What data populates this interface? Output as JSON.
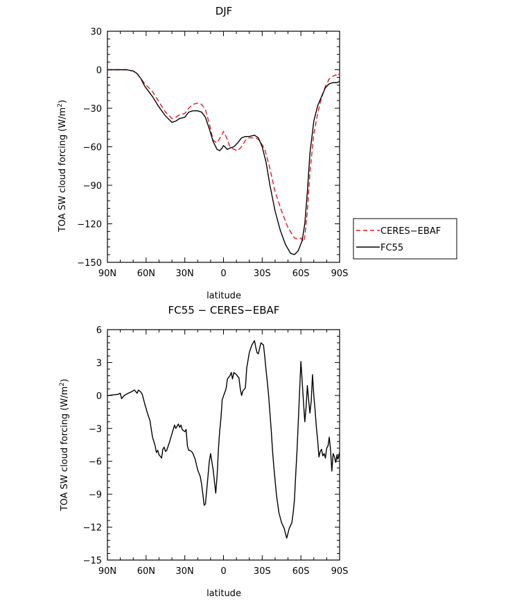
{
  "chart_data": [
    {
      "type": "line",
      "title": "DJF",
      "xlabel": "latitude",
      "ylabel_text": "TOA SW cloud forcing (W/m",
      "ylabel_sup": "2",
      "ylabel_close": ")",
      "xlim": [
        90,
        -90
      ],
      "ylim": [
        -150,
        30
      ],
      "xticks": [
        {
          "value": 90,
          "label": "90N"
        },
        {
          "value": 60,
          "label": "60N"
        },
        {
          "value": 30,
          "label": "30N"
        },
        {
          "value": 0,
          "label": "0"
        },
        {
          "value": -30,
          "label": "30S"
        },
        {
          "value": -60,
          "label": "60S"
        },
        {
          "value": -90,
          "label": "90S"
        }
      ],
      "yticks": [
        {
          "value": 30,
          "label": "30"
        },
        {
          "value": 0,
          "label": "0"
        },
        {
          "value": -30,
          "label": "−30"
        },
        {
          "value": -60,
          "label": "−60"
        },
        {
          "value": -90,
          "label": "−90"
        },
        {
          "value": -120,
          "label": "−120"
        },
        {
          "value": -150,
          "label": "−150"
        }
      ],
      "legend": "right",
      "series": [
        {
          "name": "CERES−EBAF",
          "color": "#e8141b",
          "dash": "dashed",
          "x": [
            90,
            82,
            75,
            70,
            67,
            64,
            61,
            58,
            55,
            50,
            45,
            40,
            37,
            34,
            30,
            27,
            24,
            20,
            17,
            14,
            11,
            8,
            5,
            2,
            0,
            -2,
            -5,
            -8,
            -11,
            -14,
            -17,
            -20,
            -25,
            -28,
            -32,
            -36,
            -40,
            -45,
            -50,
            -55,
            -58,
            -60,
            -62,
            -63,
            -65,
            -67,
            -70,
            -73,
            -76,
            -79,
            -82,
            -85,
            -87,
            -88,
            -90
          ],
          "y": [
            0,
            0,
            0,
            -1,
            -3,
            -7,
            -11,
            -14,
            -17,
            -25,
            -33,
            -38,
            -37,
            -35,
            -34,
            -30,
            -27,
            -26,
            -27,
            -31,
            -42,
            -55,
            -57,
            -52,
            -48,
            -52,
            -60,
            -62,
            -63,
            -60,
            -55,
            -53,
            -53,
            -55,
            -62,
            -77,
            -95,
            -110,
            -123,
            -131,
            -132,
            -131,
            -134,
            -130,
            -110,
            -80,
            -50,
            -34,
            -22,
            -13,
            -7,
            -5,
            -4,
            -5,
            -3
          ]
        },
        {
          "name": "FC55",
          "color": "#000000",
          "dash": "solid",
          "x": [
            90,
            82,
            75,
            70,
            67,
            64,
            61,
            58,
            55,
            50,
            45,
            40,
            37,
            34,
            30,
            27,
            24,
            20,
            17,
            14,
            11,
            8,
            5,
            3,
            1,
            0,
            -1,
            -3,
            -5,
            -8,
            -11,
            -14,
            -17,
            -20,
            -24,
            -27,
            -30,
            -33,
            -36,
            -40,
            -44,
            -48,
            -52,
            -55,
            -58,
            -61,
            -63,
            -65,
            -67,
            -70,
            -73,
            -76,
            -79,
            -82,
            -85,
            -88,
            -90
          ],
          "y": [
            0,
            0,
            0,
            -1,
            -3,
            -7,
            -13,
            -17,
            -21,
            -29,
            -36,
            -41,
            -40,
            -38,
            -37,
            -33,
            -32,
            -32,
            -33,
            -37,
            -46,
            -56,
            -62,
            -63,
            -61,
            -59,
            -60,
            -62,
            -61,
            -60,
            -57,
            -53,
            -52,
            -52,
            -51,
            -53,
            -60,
            -72,
            -90,
            -110,
            -125,
            -136,
            -143,
            -144,
            -141,
            -133,
            -120,
            -95,
            -65,
            -40,
            -28,
            -21,
            -14,
            -11,
            -10,
            -10,
            -9
          ]
        }
      ]
    },
    {
      "type": "line",
      "title": "FC55 − CERES−EBAF",
      "xlabel": "latitude",
      "ylabel_text": "TOA SW cloud forcing (W/m",
      "ylabel_sup": "2",
      "ylabel_close": ")",
      "xlim": [
        90,
        -90
      ],
      "ylim": [
        -15,
        6
      ],
      "xticks": [
        {
          "value": 90,
          "label": "90N"
        },
        {
          "value": 60,
          "label": "60N"
        },
        {
          "value": 30,
          "label": "30N"
        },
        {
          "value": 0,
          "label": "0"
        },
        {
          "value": -30,
          "label": "30S"
        },
        {
          "value": -60,
          "label": "60S"
        },
        {
          "value": -90,
          "label": "90S"
        }
      ],
      "yticks": [
        {
          "value": 6,
          "label": "6"
        },
        {
          "value": 3,
          "label": "3"
        },
        {
          "value": 0,
          "label": "0"
        },
        {
          "value": -3,
          "label": "−3"
        },
        {
          "value": -6,
          "label": "−6"
        },
        {
          "value": -9,
          "label": "−9"
        },
        {
          "value": -12,
          "label": "−12"
        },
        {
          "value": -15,
          "label": "−15"
        }
      ],
      "series": [
        {
          "name": "FC55",
          "color": "#000000",
          "dash": "solid",
          "x": [
            90,
            82,
            80,
            79,
            77,
            74,
            72,
            69,
            67,
            66,
            64,
            63,
            61,
            59,
            57,
            56,
            55,
            53,
            52,
            51,
            50,
            48,
            47,
            46,
            45,
            44,
            42,
            40,
            38,
            37,
            35,
            34,
            33,
            32,
            30,
            29,
            28,
            27,
            26,
            24,
            22,
            20,
            18,
            17,
            16,
            15,
            14,
            12,
            11,
            10,
            8,
            6,
            5,
            4,
            3,
            2,
            1,
            -1,
            -2,
            -3,
            -5,
            -6,
            -7,
            -8,
            -10,
            -12,
            -13,
            -14,
            -15,
            -17,
            -18,
            -20,
            -22,
            -24,
            -25,
            -26,
            -27,
            -28,
            -29,
            -30,
            -31,
            -32,
            -33,
            -34,
            -35,
            -36,
            -37,
            -38,
            -39,
            -41,
            -43,
            -45,
            -47,
            -49,
            -51,
            -53,
            -54,
            -55,
            -56,
            -57,
            -58,
            -59,
            -60,
            -61,
            -62,
            -63,
            -64,
            -65,
            -66,
            -67,
            -68,
            -69,
            -70,
            -71,
            -72,
            -73,
            -74,
            -75,
            -76,
            -77,
            -78,
            -79,
            -80,
            -81,
            -82,
            -83,
            -84,
            -85,
            -86,
            -87,
            -88,
            -88.5,
            -89,
            -90
          ],
          "y": [
            0,
            0.1,
            0.2,
            -0.3,
            0,
            0.2,
            0.3,
            0.5,
            0.2,
            0.5,
            0.3,
            0.1,
            -0.8,
            -1.6,
            -2.3,
            -3.1,
            -3.8,
            -4.6,
            -5.2,
            -5,
            -5.4,
            -5.7,
            -4.9,
            -4.7,
            -5.1,
            -5,
            -4.3,
            -3.5,
            -2.7,
            -3,
            -2.6,
            -2.9,
            -2.7,
            -3.1,
            -3.3,
            -3.1,
            -4.6,
            -5,
            -5,
            -5.2,
            -5.8,
            -6.8,
            -7.4,
            -8.1,
            -9,
            -10,
            -9.9,
            -7.3,
            -6,
            -5.3,
            -6.8,
            -8.9,
            -7.4,
            -5,
            -3.3,
            -2.1,
            -0.4,
            0.3,
            0.6,
            1.5,
            1.8,
            2.1,
            1.5,
            2.1,
            1.9,
            1.6,
            0.6,
            0,
            0.4,
            0.7,
            2.5,
            3.9,
            4.6,
            5,
            4.4,
            3.9,
            3.8,
            4.3,
            4.8,
            4.7,
            4.6,
            3.5,
            2.3,
            1.2,
            0,
            -1.6,
            -3.2,
            -5,
            -6.5,
            -9,
            -10.7,
            -11.6,
            -12.1,
            -13,
            -12.1,
            -11.6,
            -10.7,
            -9.5,
            -7.2,
            -5,
            -2.4,
            0.4,
            3.1,
            1.3,
            -0.6,
            -2.4,
            -1.1,
            0.9,
            -0.4,
            -1.6,
            -0.5,
            1.9,
            0,
            -1.3,
            -2.9,
            -4.1,
            -5.6,
            -5.1,
            -4.9,
            -5.5,
            -5.3,
            -5.7,
            -4.8,
            -4.6,
            -3.8,
            -5,
            -6.9,
            -5.3,
            -5.6,
            -6.1,
            -5.4,
            -5.8,
            -5.7,
            -5.2
          ]
        }
      ]
    }
  ]
}
